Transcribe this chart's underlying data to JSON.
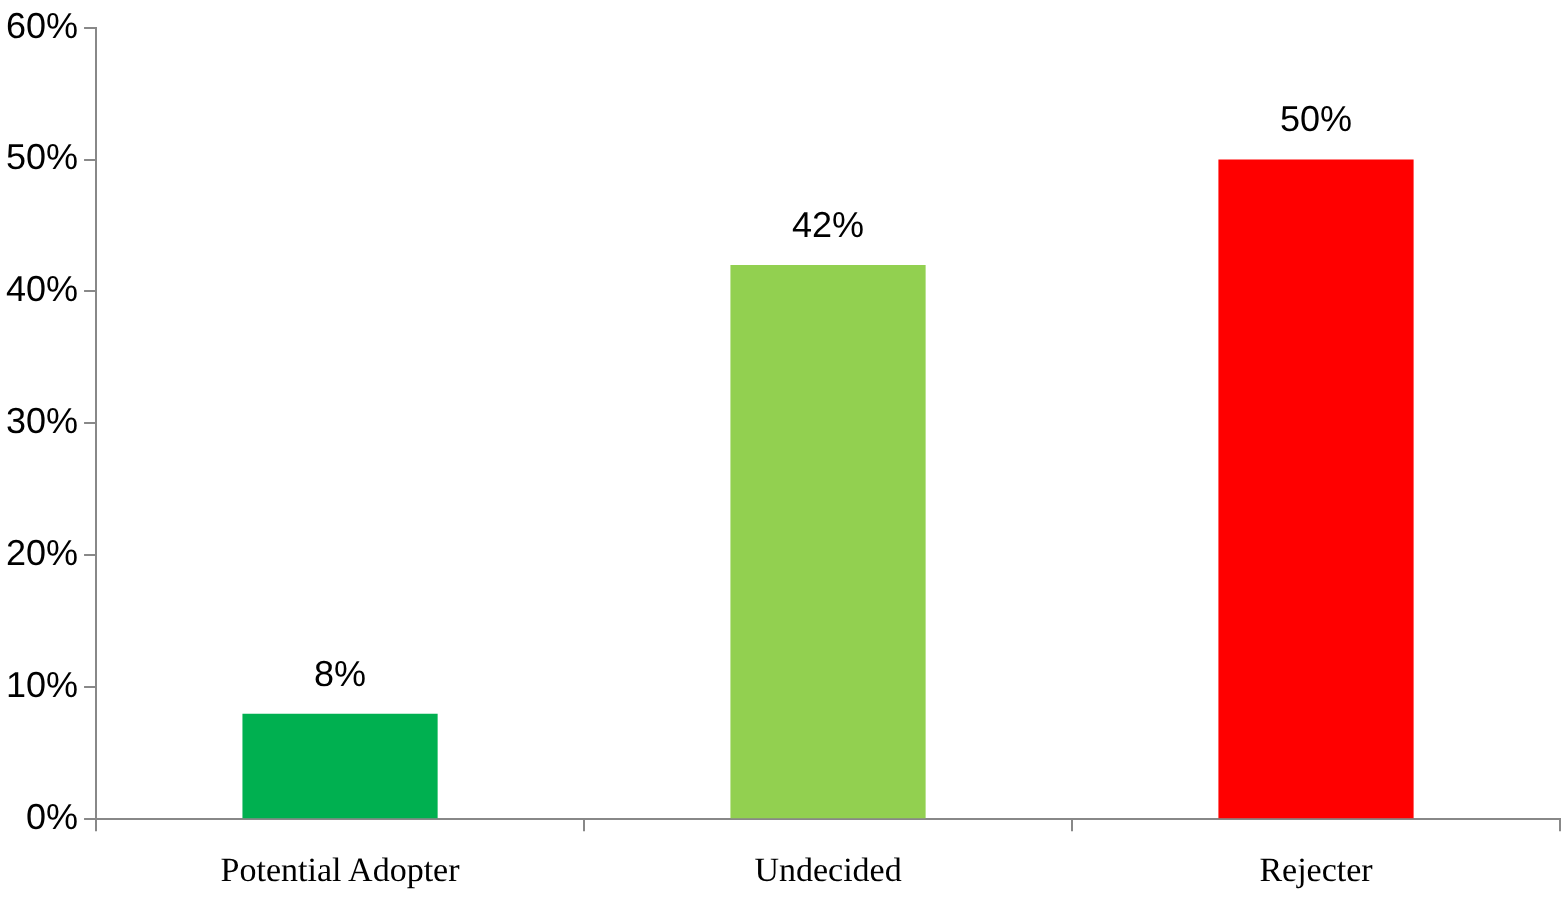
{
  "chart_data": {
    "type": "bar",
    "categories": [
      "Potential Adopter",
      "Undecided",
      "Rejecter"
    ],
    "values": [
      8,
      42,
      50
    ],
    "colors": [
      "#00b050",
      "#92d050",
      "#ff0000"
    ],
    "ylim": [
      0,
      60
    ],
    "yticks": [
      {
        "value": 0,
        "label": "0%"
      },
      {
        "value": 10,
        "label": "10%"
      },
      {
        "value": 20,
        "label": "20%"
      },
      {
        "value": 30,
        "label": "30%"
      },
      {
        "value": 40,
        "label": "40%"
      },
      {
        "value": 50,
        "label": "50%"
      },
      {
        "value": 60,
        "label": "60%"
      }
    ],
    "value_labels": [
      "8%",
      "42%",
      "50%"
    ],
    "grid": false,
    "legend": false
  }
}
